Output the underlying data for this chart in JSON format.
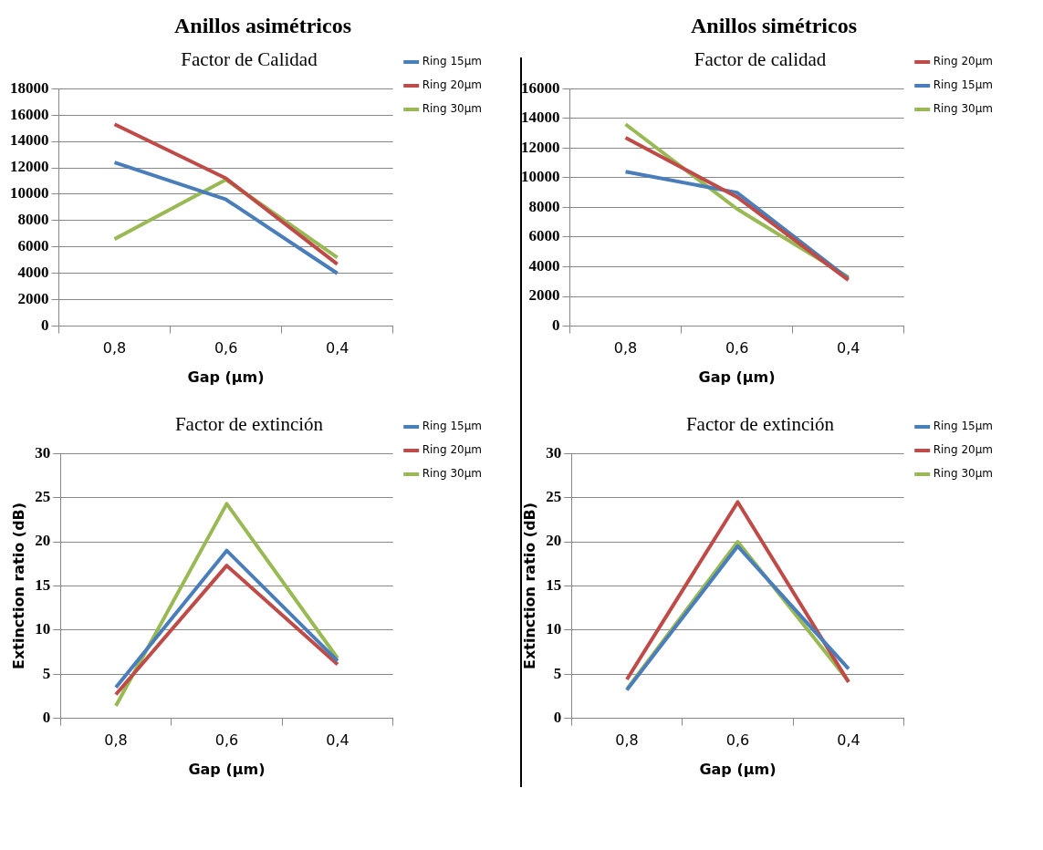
{
  "chart_data": [
    {
      "type": "line",
      "title": "Factor de Calidad",
      "annotations": [
        "Anillos asimétricos"
      ],
      "xlabel": "Gap (µm)",
      "categories": [
        "0,8",
        "0,6",
        "0,4"
      ],
      "ylim": [
        0,
        18000
      ],
      "yticks": [
        0,
        2000,
        4000,
        6000,
        8000,
        10000,
        12000,
        14000,
        16000,
        18000
      ],
      "grid": "y",
      "legend": "right",
      "marker": "none",
      "series": [
        {
          "name": "Ring 15µm",
          "color": "#4a7ebb",
          "values": [
            12400,
            9600,
            4000
          ]
        },
        {
          "name": "Ring 20µm",
          "color": "#be4b48",
          "values": [
            15300,
            11200,
            4700
          ]
        },
        {
          "name": "Ring 30µm",
          "color": "#98b954",
          "values": [
            6600,
            11100,
            5200
          ]
        }
      ]
    },
    {
      "type": "line",
      "title": "Factor de calidad",
      "annotations": [
        "Anillos simétricos"
      ],
      "xlabel": "Gap (µm)",
      "categories": [
        "0,8",
        "0,6",
        "0,4"
      ],
      "ylim": [
        0,
        16000
      ],
      "yticks": [
        0,
        2000,
        4000,
        6000,
        8000,
        10000,
        12000,
        14000,
        16000
      ],
      "grid": "y",
      "legend": "right",
      "marker": "none",
      "series": [
        {
          "name": "Ring 20µm",
          "color": "#be4b48",
          "values": [
            12700,
            8700,
            3100
          ]
        },
        {
          "name": "Ring 15µm",
          "color": "#4a7ebb",
          "values": [
            10400,
            9000,
            3200
          ]
        },
        {
          "name": "Ring 30µm",
          "color": "#98b954",
          "values": [
            13600,
            7900,
            3300
          ]
        }
      ]
    },
    {
      "type": "line",
      "title": "Factor de extinción",
      "xlabel": "Gap (µm)",
      "ylabel": "Extinction ratio (dB)",
      "categories": [
        "0,8",
        "0,6",
        "0,4"
      ],
      "ylim": [
        0,
        30
      ],
      "yticks": [
        0,
        5,
        10,
        15,
        20,
        25,
        30
      ],
      "grid": "y",
      "legend": "right",
      "marker": "none",
      "series": [
        {
          "name": "Ring 15µm",
          "color": "#4a7ebb",
          "values": [
            3.5,
            19,
            6.5
          ]
        },
        {
          "name": "Ring 20µm",
          "color": "#be4b48",
          "values": [
            2.7,
            17.3,
            6.1
          ]
        },
        {
          "name": "Ring 30µm",
          "color": "#98b954",
          "values": [
            1.4,
            24.3,
            6.8
          ]
        }
      ]
    },
    {
      "type": "line",
      "title": "Factor de extinción",
      "xlabel": "Gap (µm)",
      "ylabel": "Extinction ratio (dB)",
      "categories": [
        "0,8",
        "0,6",
        "0,4"
      ],
      "ylim": [
        0,
        30
      ],
      "yticks": [
        0,
        5,
        10,
        15,
        20,
        25,
        30
      ],
      "grid": "y",
      "legend": "right",
      "marker": "none",
      "series": [
        {
          "name": "Ring 15µm",
          "color": "#4a7ebb",
          "values": [
            3.2,
            19.5,
            5.6
          ]
        },
        {
          "name": "Ring 20µm",
          "color": "#be4b48",
          "values": [
            4.4,
            24.5,
            4.1
          ]
        },
        {
          "name": "Ring 30µm",
          "color": "#98b954",
          "values": [
            3.3,
            20,
            4.2
          ]
        }
      ]
    }
  ]
}
